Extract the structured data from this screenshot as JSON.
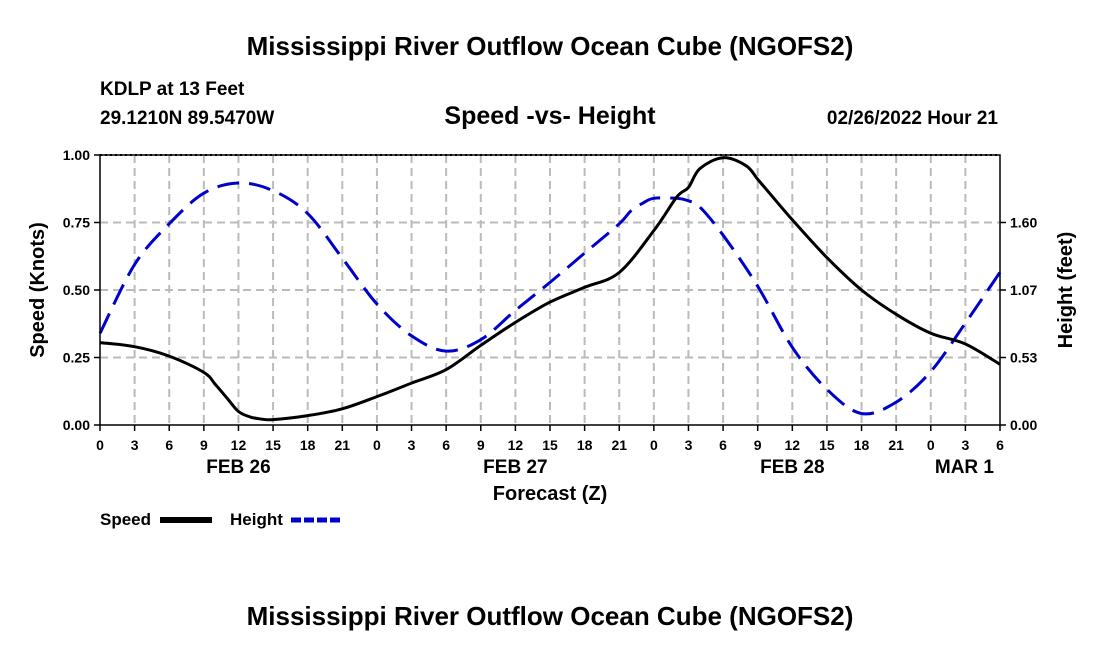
{
  "title": "Mississippi River Outflow Ocean Cube (NGOFS2)",
  "footer_title": "Mississippi River Outflow Ocean Cube (NGOFS2)",
  "station": {
    "name": "KDLP at 13 Feet",
    "coords": "29.1210N  89.5470W",
    "datetime": "02/26/2022 Hour 21"
  },
  "chart_data": {
    "type": "line",
    "title": "Speed -vs- Height",
    "xlabel": "Forecast (Z)",
    "ylabel": "Speed (Knots)",
    "ylabel_right": "Height (feet)",
    "x_hours_range": [
      0,
      78
    ],
    "x_tick_labels": [
      "0",
      "3",
      "6",
      "9",
      "12",
      "15",
      "18",
      "21",
      "0",
      "3",
      "6",
      "9",
      "12",
      "15",
      "18",
      "21",
      "0",
      "3",
      "6",
      "9",
      "12",
      "15",
      "18",
      "21",
      "0",
      "3",
      "6"
    ],
    "date_labels": [
      {
        "label": "FEB 26",
        "hour": 12
      },
      {
        "label": "FEB 27",
        "hour": 36
      },
      {
        "label": "FEB 28",
        "hour": 60
      },
      {
        "label": "MAR 1",
        "hour": 78
      }
    ],
    "ylim": [
      0,
      1.0
    ],
    "y_ticks": [
      "0.00",
      "0.25",
      "0.50",
      "0.75",
      "1.00"
    ],
    "y2_ticks": [
      {
        "label": "0.00",
        "value": 0.0
      },
      {
        "label": "0.53",
        "value": 0.25
      },
      {
        "label": "1.07",
        "value": 0.5
      },
      {
        "label": "1.60",
        "value": 0.75
      }
    ],
    "grid": true,
    "series": [
      {
        "name": "Speed",
        "color": "#000000",
        "style": "solid",
        "x": [
          0,
          3,
          6,
          9,
          10,
          11,
          12,
          13,
          14,
          15,
          18,
          21,
          24,
          27,
          30,
          33,
          36,
          39,
          42,
          45,
          48,
          50,
          51,
          52,
          54,
          56,
          57,
          58,
          60,
          63,
          66,
          69,
          72,
          75,
          78
        ],
        "y": [
          0.305,
          0.29,
          0.255,
          0.195,
          0.15,
          0.1,
          0.05,
          0.03,
          0.022,
          0.02,
          0.035,
          0.06,
          0.105,
          0.155,
          0.205,
          0.295,
          0.38,
          0.455,
          0.51,
          0.565,
          0.72,
          0.845,
          0.88,
          0.95,
          0.99,
          0.96,
          0.91,
          0.86,
          0.76,
          0.62,
          0.5,
          0.41,
          0.34,
          0.3,
          0.225
        ]
      },
      {
        "name": "Height",
        "color": "#0000cc",
        "style": "dashed",
        "x": [
          0,
          3,
          6,
          9,
          12,
          15,
          18,
          21,
          24,
          27,
          30,
          33,
          36,
          39,
          42,
          45,
          46,
          47,
          48,
          50,
          51,
          52,
          54,
          57,
          60,
          63,
          66,
          69,
          72,
          75,
          78
        ],
        "y": [
          0.72,
          1.26,
          1.58,
          1.82,
          1.9,
          1.84,
          1.66,
          1.31,
          0.95,
          0.7,
          0.58,
          0.67,
          0.9,
          1.12,
          1.35,
          1.58,
          1.68,
          1.74,
          1.78,
          1.78,
          1.76,
          1.71,
          1.49,
          1.09,
          0.61,
          0.28,
          0.09,
          0.18,
          0.42,
          0.8,
          1.2
        ]
      }
    ],
    "legend": [
      "Speed",
      "Height"
    ]
  }
}
